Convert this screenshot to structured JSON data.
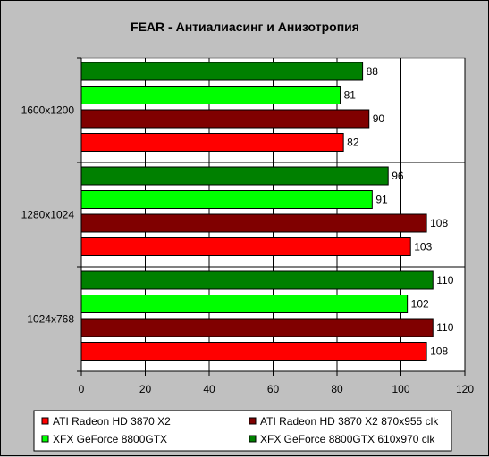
{
  "chart_data": {
    "type": "bar",
    "orientation": "horizontal",
    "title": "FEAR - Антиалиасинг и Анизотропия",
    "xlabel": "",
    "ylabel": "",
    "xlim": [
      0,
      120
    ],
    "x_ticks": [
      0,
      20,
      40,
      60,
      80,
      100,
      120
    ],
    "grid": true,
    "legend_position": "bottom",
    "categories": [
      "1600x1200",
      "1280x1024",
      "1024x768"
    ],
    "series": [
      {
        "name": "ATI Radeon HD 3870 X2",
        "color": "#ff0000",
        "values": [
          82,
          103,
          108
        ]
      },
      {
        "name": "ATI Radeon HD 3870 X2 870x955 clk",
        "color": "#800000",
        "values": [
          90,
          108,
          110
        ]
      },
      {
        "name": "XFX GeForce 8800GTX",
        "color": "#00ff00",
        "values": [
          81,
          91,
          102
        ]
      },
      {
        "name": "XFX GeForce 8800GTX 610x970 clk",
        "color": "#008000",
        "values": [
          88,
          96,
          110
        ]
      }
    ]
  }
}
